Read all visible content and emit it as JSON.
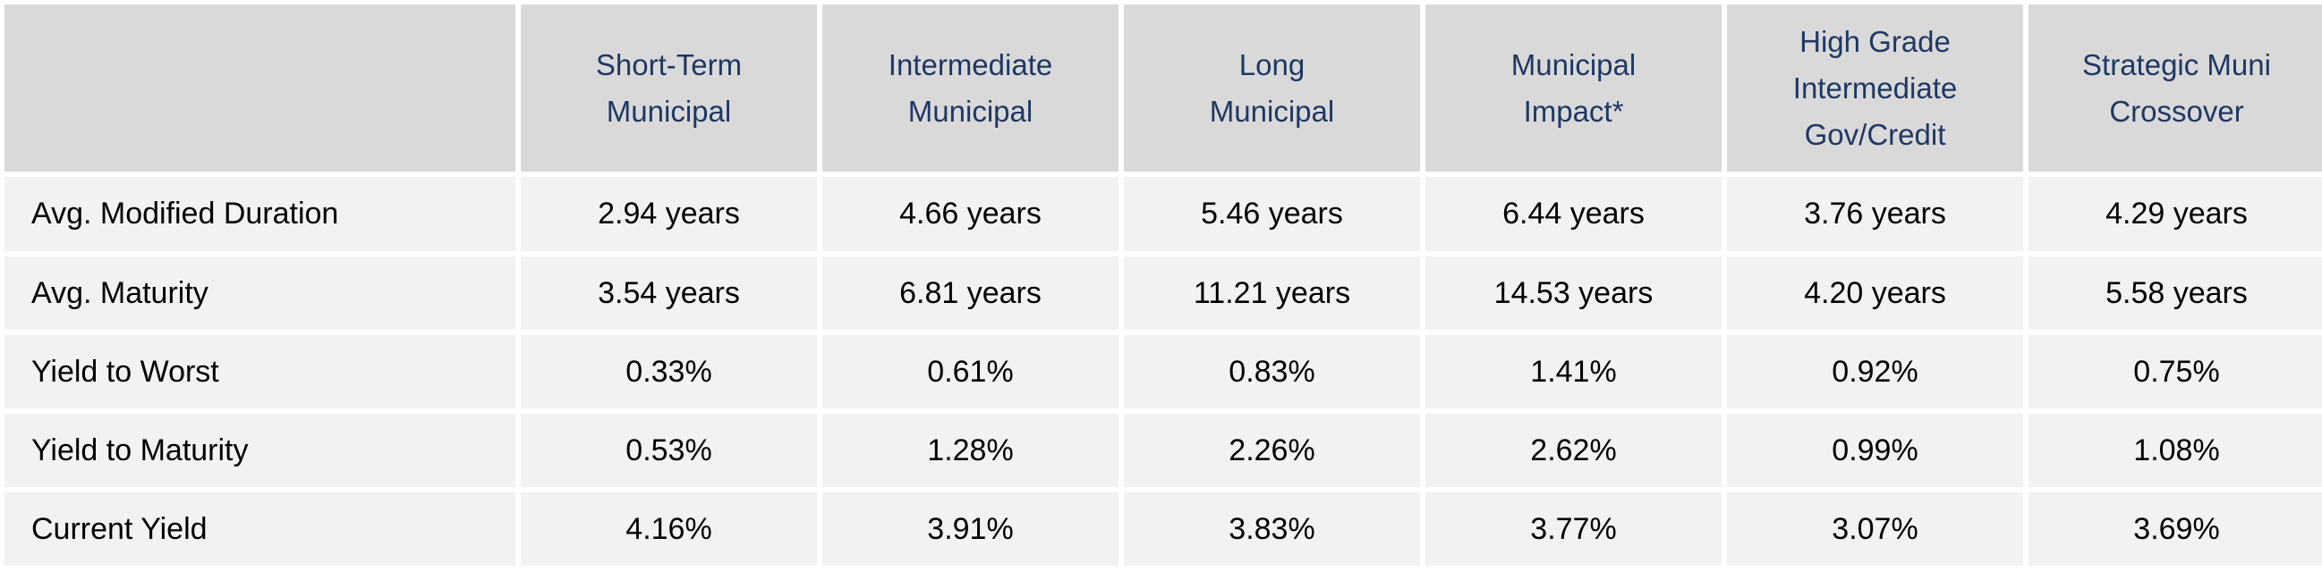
{
  "columns": [
    {
      "lines": [
        "Short-Term",
        "Municipal"
      ]
    },
    {
      "lines": [
        "Intermediate",
        "Municipal"
      ]
    },
    {
      "lines": [
        "Long",
        "Municipal"
      ]
    },
    {
      "lines": [
        "Municipal",
        "Impact*"
      ]
    },
    {
      "lines": [
        "High Grade",
        "Intermediate",
        "Gov/Credit"
      ]
    },
    {
      "lines": [
        "Strategic Muni",
        "Crossover"
      ]
    }
  ],
  "rows": [
    {
      "label": "Avg. Modified Duration",
      "values": [
        "2.94 years",
        "4.66 years",
        "5.46 years",
        "6.44 years",
        "3.76 years",
        "4.29 years"
      ]
    },
    {
      "label": "Avg. Maturity",
      "values": [
        "3.54 years",
        "6.81 years",
        "11.21 years",
        "14.53 years",
        "4.20 years",
        "5.58 years"
      ]
    },
    {
      "label": "Yield to Worst",
      "values": [
        "0.33%",
        "0.61%",
        "0.83%",
        "1.41%",
        "0.92%",
        "0.75%"
      ]
    },
    {
      "label": "Yield to Maturity",
      "values": [
        "0.53%",
        "1.28%",
        "2.26%",
        "2.62%",
        "0.99%",
        "1.08%"
      ]
    },
    {
      "label": "Current Yield",
      "values": [
        "4.16%",
        "3.91%",
        "3.83%",
        "3.77%",
        "3.07%",
        "3.69%"
      ]
    }
  ],
  "colors": {
    "header_bg": "#d9d9d9",
    "header_text": "#1f3864",
    "row_bg": "#f2f2f2",
    "row_text": "#000000"
  }
}
